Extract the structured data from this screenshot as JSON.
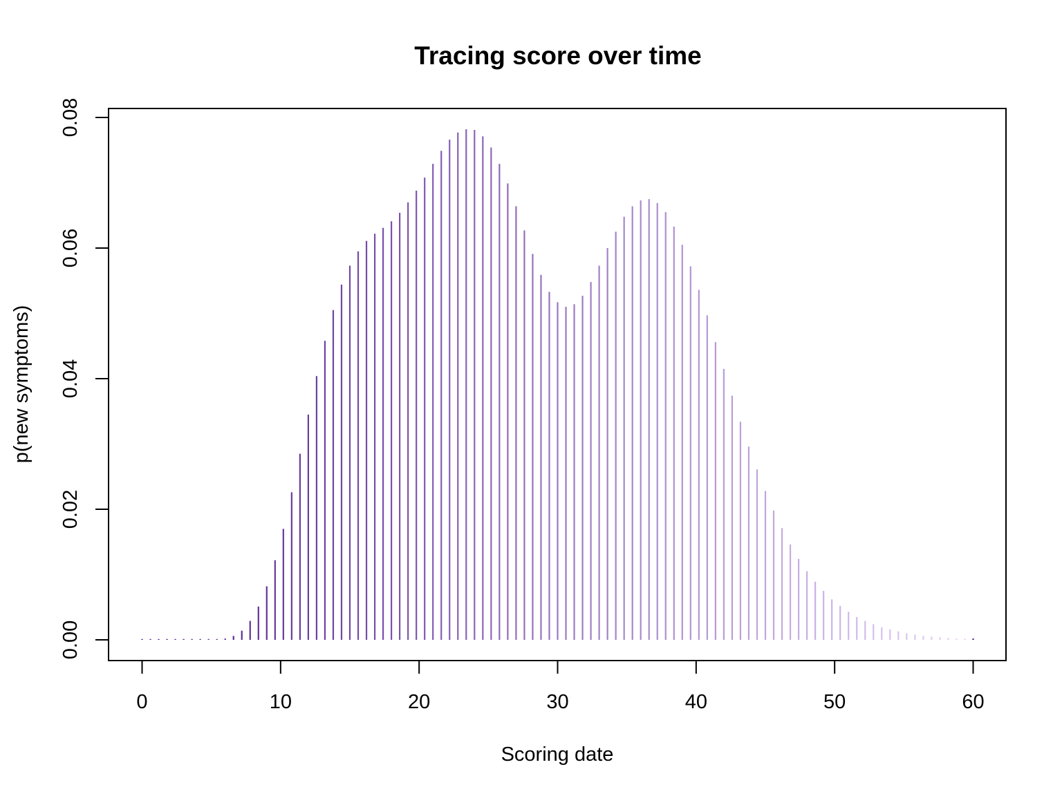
{
  "chart_data": {
    "type": "bar",
    "title": "Tracing score over time",
    "xlabel": "Scoring date",
    "ylabel": "p(new symptoms)",
    "xlim": [
      0,
      60
    ],
    "ylim": [
      0,
      0.08
    ],
    "x_ticks": [
      0,
      10,
      20,
      30,
      40,
      50,
      60
    ],
    "x_tick_labels": [
      "0",
      "10",
      "20",
      "30",
      "40",
      "50",
      "60"
    ],
    "y_ticks": [
      0,
      0.02,
      0.04,
      0.06,
      0.08
    ],
    "y_tick_labels": [
      "0.00",
      "0.02",
      "0.04",
      "0.06",
      "0.08"
    ],
    "grid": false,
    "bar_style": "vertical lines (histogram type)",
    "colors": {
      "start": "#4a1a8a",
      "end": "#e8d4f8"
    },
    "x_step": 0.6,
    "values": [
      0.0,
      0.0,
      0.0,
      0.0,
      0.0,
      0.0,
      0.0,
      0.0,
      0.0,
      0.0,
      0.0002,
      0.0006,
      0.0014,
      0.0029,
      0.0051,
      0.0082,
      0.0122,
      0.017,
      0.0226,
      0.0285,
      0.0345,
      0.0404,
      0.0458,
      0.0505,
      0.0544,
      0.0573,
      0.0595,
      0.0611,
      0.0622,
      0.0631,
      0.0641,
      0.0654,
      0.067,
      0.0688,
      0.0708,
      0.0729,
      0.0749,
      0.0766,
      0.0777,
      0.0782,
      0.0781,
      0.0771,
      0.0754,
      0.0729,
      0.0699,
      0.0664,
      0.0627,
      0.0591,
      0.0559,
      0.0533,
      0.0517,
      0.051,
      0.0514,
      0.0527,
      0.0548,
      0.0573,
      0.06,
      0.0625,
      0.0648,
      0.0664,
      0.0673,
      0.0675,
      0.0669,
      0.0655,
      0.0633,
      0.0605,
      0.0572,
      0.0536,
      0.0497,
      0.0456,
      0.0415,
      0.0374,
      0.0334,
      0.0296,
      0.0261,
      0.0228,
      0.0198,
      0.0171,
      0.0146,
      0.0124,
      0.0105,
      0.0089,
      0.0075,
      0.0062,
      0.0052,
      0.0043,
      0.0035,
      0.0029,
      0.0024,
      0.0019,
      0.0016,
      0.0013,
      0.001,
      0.0008,
      0.0006,
      0.0005,
      0.0004,
      0.0003,
      0.0002,
      0.0002,
      0.0002
    ]
  }
}
